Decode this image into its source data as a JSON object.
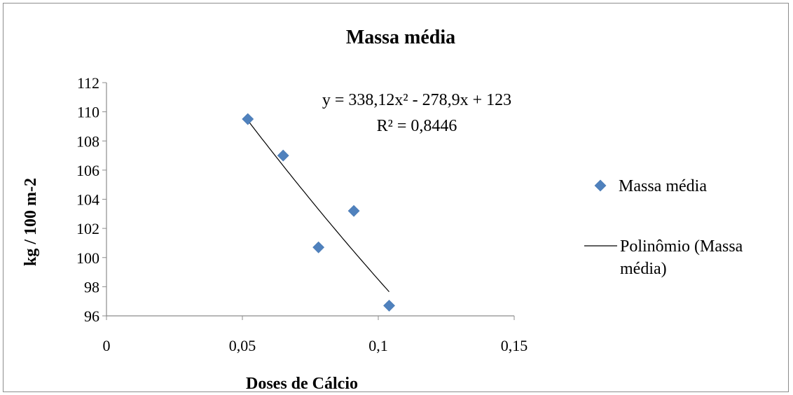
{
  "chart_data": {
    "type": "scatter",
    "title": "Massa média",
    "xlabel": "Doses de Cálcio",
    "ylabel": "kg / 100 m-2",
    "xlim": [
      0,
      0.15
    ],
    "ylim": [
      96,
      112
    ],
    "x_ticks": [
      "0",
      "0,05",
      "0,1",
      "0,15"
    ],
    "x_tick_values": [
      0,
      0.05,
      0.1,
      0.15
    ],
    "y_ticks": [
      "96",
      "98",
      "100",
      "102",
      "104",
      "106",
      "108",
      "110",
      "112"
    ],
    "y_tick_values": [
      96,
      98,
      100,
      102,
      104,
      106,
      108,
      110,
      112
    ],
    "grid": false,
    "legend_position": "right",
    "series": [
      {
        "name": "Massa média",
        "marker": "diamond",
        "color": "#4f81bd",
        "x": [
          0.052,
          0.065,
          0.078,
          0.091,
          0.104
        ],
        "y": [
          109.5,
          107.0,
          100.7,
          103.2,
          96.7
        ]
      }
    ],
    "trendline": {
      "legend_label_line1": "Polinômio (Massa",
      "legend_label_line2": "média)",
      "color": "#000000",
      "coefficients": [
        338.12,
        -278.9,
        123
      ],
      "x_range": [
        0.052,
        0.104
      ],
      "equation_text": "y = 338,12x² - 278,9x + 123",
      "r2_text": "R² = 0,8446"
    }
  }
}
